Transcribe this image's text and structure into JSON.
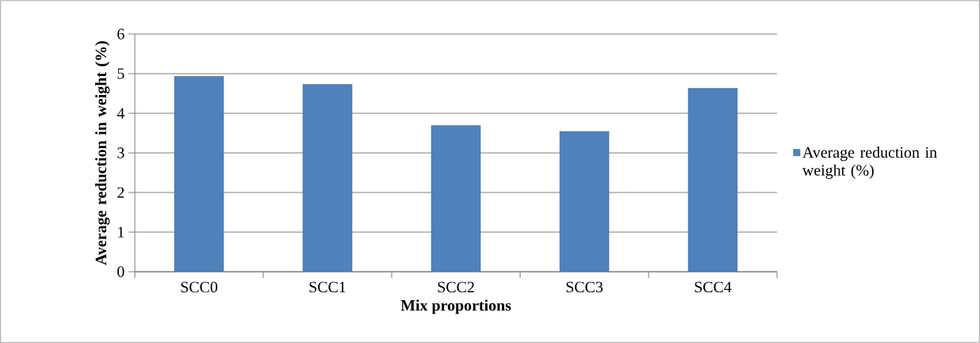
{
  "chart_data": {
    "type": "bar",
    "xlabel": "Mix proportions",
    "ylabel": "Average reduction in weight (%)",
    "categories": [
      "SCC0",
      "SCC1",
      "SCC2",
      "SCC3",
      "SCC4"
    ],
    "series": [
      {
        "name": "Average reduction in weight (%)",
        "color": "#4f81bd",
        "values": [
          4.93,
          4.73,
          3.69,
          3.54,
          4.63
        ]
      }
    ],
    "ylim": [
      0,
      6
    ],
    "yticks": [
      0,
      1,
      2,
      3,
      4,
      5,
      6
    ],
    "grid": "y",
    "legend": "right"
  }
}
